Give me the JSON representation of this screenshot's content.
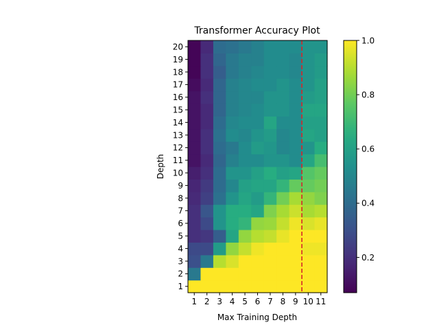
{
  "chart_data": {
    "type": "heatmap",
    "title": "Transformer Accuracy Plot",
    "xlabel": "Max Training Depth",
    "ylabel": "Depth",
    "x_categories": [
      "1",
      "2",
      "3",
      "4",
      "5",
      "6",
      "7",
      "8",
      "9",
      "10",
      "11"
    ],
    "y_categories": [
      "1",
      "2",
      "3",
      "4",
      "5",
      "6",
      "7",
      "8",
      "9",
      "10",
      "11",
      "12",
      "13",
      "14",
      "15",
      "16",
      "17",
      "18",
      "19",
      "20"
    ],
    "colormap": "viridis",
    "color_range": [
      0.07,
      1.0
    ],
    "colorbar_ticks": [
      "0.2",
      "0.4",
      "0.6",
      "0.8",
      "1.0"
    ],
    "colorbar_tick_values": [
      0.2,
      0.4,
      0.6,
      0.8,
      1.0
    ],
    "reference_line": {
      "x": 9.5,
      "style": "dashed",
      "color": "#d62728"
    },
    "values": [
      [
        1.0,
        1.0,
        1.0,
        1.0,
        1.0,
        1.0,
        1.0,
        1.0,
        1.0,
        1.0,
        1.0
      ],
      [
        0.45,
        1.0,
        1.0,
        1.0,
        1.0,
        1.0,
        1.0,
        1.0,
        1.0,
        1.0,
        1.0
      ],
      [
        0.3,
        0.45,
        0.9,
        0.95,
        1.0,
        1.0,
        1.0,
        1.0,
        1.0,
        1.0,
        1.0
      ],
      [
        0.28,
        0.28,
        0.58,
        0.85,
        0.92,
        0.98,
        1.0,
        1.0,
        1.0,
        0.98,
        0.98
      ],
      [
        0.2,
        0.22,
        0.35,
        0.62,
        0.85,
        0.9,
        0.92,
        0.97,
        1.0,
        1.0,
        1.0
      ],
      [
        0.2,
        0.28,
        0.55,
        0.65,
        0.68,
        0.85,
        0.86,
        0.92,
        0.98,
        0.95,
        0.97
      ],
      [
        0.2,
        0.32,
        0.55,
        0.65,
        0.65,
        0.62,
        0.82,
        0.88,
        0.93,
        0.88,
        0.9
      ],
      [
        0.18,
        0.25,
        0.42,
        0.55,
        0.62,
        0.58,
        0.68,
        0.8,
        0.88,
        0.85,
        0.82
      ],
      [
        0.17,
        0.23,
        0.4,
        0.5,
        0.6,
        0.62,
        0.62,
        0.68,
        0.78,
        0.78,
        0.8
      ],
      [
        0.15,
        0.2,
        0.4,
        0.55,
        0.55,
        0.6,
        0.65,
        0.6,
        0.62,
        0.75,
        0.78
      ],
      [
        0.12,
        0.18,
        0.38,
        0.48,
        0.52,
        0.52,
        0.55,
        0.55,
        0.52,
        0.62,
        0.72
      ],
      [
        0.12,
        0.2,
        0.4,
        0.45,
        0.52,
        0.58,
        0.56,
        0.5,
        0.52,
        0.55,
        0.65
      ],
      [
        0.12,
        0.2,
        0.42,
        0.52,
        0.5,
        0.55,
        0.58,
        0.5,
        0.52,
        0.62,
        0.6
      ],
      [
        0.12,
        0.18,
        0.4,
        0.5,
        0.52,
        0.52,
        0.62,
        0.52,
        0.52,
        0.6,
        0.6
      ],
      [
        0.12,
        0.18,
        0.38,
        0.48,
        0.5,
        0.52,
        0.55,
        0.55,
        0.52,
        0.62,
        0.62
      ],
      [
        0.12,
        0.2,
        0.38,
        0.48,
        0.5,
        0.5,
        0.55,
        0.55,
        0.52,
        0.58,
        0.6
      ],
      [
        0.1,
        0.18,
        0.38,
        0.48,
        0.5,
        0.52,
        0.52,
        0.55,
        0.52,
        0.55,
        0.6
      ],
      [
        0.08,
        0.2,
        0.35,
        0.45,
        0.48,
        0.5,
        0.52,
        0.52,
        0.5,
        0.55,
        0.58
      ],
      [
        0.08,
        0.2,
        0.38,
        0.45,
        0.48,
        0.48,
        0.52,
        0.52,
        0.5,
        0.55,
        0.58
      ],
      [
        0.08,
        0.18,
        0.4,
        0.42,
        0.45,
        0.48,
        0.52,
        0.52,
        0.52,
        0.55,
        0.55
      ]
    ]
  }
}
